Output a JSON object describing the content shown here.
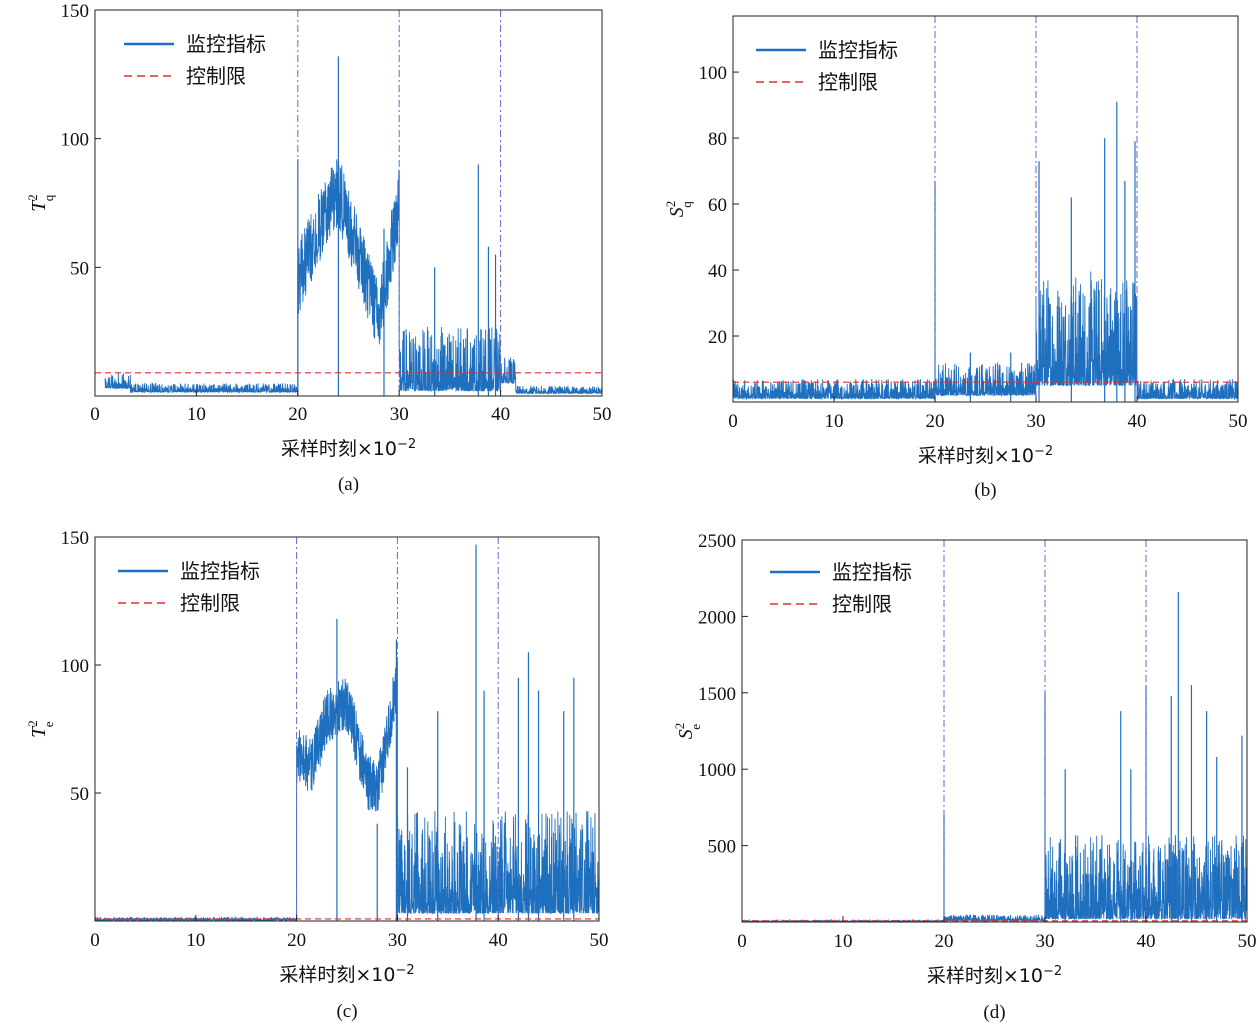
{
  "chart_data": [
    {
      "id": "a",
      "type": "line",
      "caption": "(a)",
      "ylabel": "T",
      "ylabel_sup": "2",
      "ylabel_sub": "q",
      "xlabel": "采样时刻×10",
      "xlabel_exp": "−2",
      "xlim": [
        0,
        50
      ],
      "ylim": [
        0,
        150
      ],
      "xticks": [
        0,
        10,
        20,
        30,
        40,
        50
      ],
      "xtick_labels": [
        "0",
        "10",
        "20",
        "30",
        "40",
        "50"
      ],
      "yticks": [
        50,
        100,
        150
      ],
      "ytick_labels": [
        "50",
        "100",
        "150"
      ],
      "control_limit": 9,
      "fault_lines": [
        20,
        30,
        40
      ],
      "legend": [
        "监控指标",
        "控制限"
      ],
      "segments": [
        {
          "from": 1,
          "to": 3.5,
          "base": 3,
          "spread": 6,
          "peaks": []
        },
        {
          "from": 3.5,
          "to": 20,
          "base": 1.5,
          "spread": 3.5,
          "peaks": []
        },
        {
          "from": 20,
          "to": 30,
          "curve": [
            [
              20,
              45
            ],
            [
              22,
              65
            ],
            [
              24,
              80
            ],
            [
              26,
              55
            ],
            [
              28,
              30
            ],
            [
              30,
              75
            ]
          ],
          "spread": 28,
          "peaks": [
            [
              20,
              92
            ],
            [
              24,
              132
            ],
            [
              28.5,
              65
            ]
          ]
        },
        {
          "from": 30,
          "to": 40,
          "base": 2,
          "spread": 25,
          "peaks": [
            [
              33.5,
              50
            ],
            [
              37.8,
              90
            ],
            [
              38.8,
              58
            ],
            [
              39.5,
              55
            ]
          ]
        },
        {
          "from": 40,
          "to": 41.5,
          "base": 5,
          "spread": 10,
          "peaks": []
        },
        {
          "from": 41.5,
          "to": 50,
          "base": 1,
          "spread": 3,
          "peaks": []
        }
      ],
      "colors": {
        "series": "#1f6fbf",
        "limit": "#e03030",
        "fault_line": "#6666cc"
      }
    },
    {
      "id": "b",
      "type": "line",
      "caption": "(b)",
      "ylabel": "S",
      "ylabel_sup": "2",
      "ylabel_sub": "q",
      "xlabel": "采样时刻×10",
      "xlabel_exp": "−2",
      "xlim": [
        0,
        50
      ],
      "ylim": [
        0,
        117
      ],
      "xticks": [
        0,
        10,
        20,
        30,
        40,
        50
      ],
      "xtick_labels": [
        "0",
        "10",
        "20",
        "30",
        "40",
        "50"
      ],
      "yticks": [
        20,
        40,
        60,
        80,
        100
      ],
      "ytick_labels": [
        "20",
        "40",
        "60",
        "80",
        "100"
      ],
      "control_limit": 6,
      "fault_lines": [
        20,
        30,
        40
      ],
      "legend": [
        "监控指标",
        "控制限"
      ],
      "segments": [
        {
          "from": 0,
          "to": 20,
          "base": 1,
          "spread": 6,
          "peaks": [
            [
              20,
              67
            ]
          ]
        },
        {
          "from": 20,
          "to": 30,
          "base": 2,
          "spread": 10,
          "peaks": [
            [
              23.5,
              15
            ],
            [
              27.5,
              15
            ]
          ]
        },
        {
          "from": 30,
          "to": 40,
          "base": 5,
          "spread": 35,
          "peaks": [
            [
              30.3,
              73
            ],
            [
              33.5,
              62
            ],
            [
              36.8,
              80
            ],
            [
              38,
              91
            ],
            [
              38.8,
              67
            ],
            [
              39.8,
              79
            ]
          ]
        },
        {
          "from": 40,
          "to": 50,
          "base": 1,
          "spread": 6,
          "peaks": []
        }
      ],
      "colors": {
        "series": "#1f6fbf",
        "limit": "#e03030",
        "fault_line": "#6666cc"
      }
    },
    {
      "id": "c",
      "type": "line",
      "caption": "(c)",
      "ylabel": "T",
      "ylabel_sup": "2",
      "ylabel_sub": "e",
      "xlabel": "采样时刻×10",
      "xlabel_exp": "−2",
      "xlim": [
        0,
        50
      ],
      "ylim": [
        0,
        150
      ],
      "xticks": [
        0,
        10,
        20,
        30,
        40,
        50
      ],
      "xtick_labels": [
        "0",
        "10",
        "20",
        "30",
        "40",
        "50"
      ],
      "yticks": [
        50,
        100,
        150
      ],
      "ytick_labels": [
        "50",
        "100",
        "150"
      ],
      "control_limit": 0.8,
      "fault_lines": [
        20,
        30,
        40
      ],
      "legend": [
        "监控指标",
        "控制限"
      ],
      "segments": [
        {
          "from": 0,
          "to": 20,
          "base": 0.3,
          "spread": 1.2,
          "peaks": []
        },
        {
          "from": 20,
          "to": 30,
          "curve": [
            [
              20,
              65
            ],
            [
              21.5,
              60
            ],
            [
              23,
              80
            ],
            [
              25,
              85
            ],
            [
              27,
              55
            ],
            [
              28,
              50
            ],
            [
              30,
              95
            ]
          ],
          "spread": 22,
          "peaks": [
            [
              24,
              118
            ],
            [
              28,
              38
            ],
            [
              29.9,
              110
            ]
          ]
        },
        {
          "from": 30,
          "to": 50,
          "base": 3,
          "spread": 40,
          "peaks": [
            [
              31,
              60
            ],
            [
              34,
              82
            ],
            [
              37.8,
              147
            ],
            [
              38.6,
              90
            ],
            [
              42,
              95
            ],
            [
              43,
              105
            ],
            [
              44,
              90
            ],
            [
              46.5,
              82
            ],
            [
              47.5,
              95
            ]
          ]
        }
      ],
      "colors": {
        "series": "#1f6fbf",
        "limit": "#e03030",
        "fault_line": "#6666cc"
      }
    },
    {
      "id": "d",
      "type": "line",
      "caption": "(d)",
      "ylabel": "S",
      "ylabel_sup": "2",
      "ylabel_sub": "e",
      "xlabel": "采样时刻×10",
      "xlabel_exp": "−2",
      "xlim": [
        0,
        50
      ],
      "ylim": [
        0,
        2500
      ],
      "xticks": [
        0,
        10,
        20,
        30,
        40,
        50
      ],
      "xtick_labels": [
        "0",
        "10",
        "20",
        "30",
        "40",
        "50"
      ],
      "yticks": [
        500,
        1000,
        1500,
        2000,
        2500
      ],
      "ytick_labels": [
        "500",
        "1000",
        "1500",
        "2000",
        "2500"
      ],
      "control_limit": 8,
      "fault_lines": [
        20,
        30,
        40
      ],
      "legend": [
        "监控指标",
        "控制限"
      ],
      "segments": [
        {
          "from": 0,
          "to": 20,
          "base": 3,
          "spread": 10,
          "peaks": [
            [
              20,
              700
            ]
          ]
        },
        {
          "from": 20,
          "to": 30,
          "base": 8,
          "spread": 40,
          "peaks": [
            [
              30,
              1500
            ]
          ]
        },
        {
          "from": 30,
          "to": 50,
          "base": 20,
          "spread": 550,
          "peaks": [
            [
              32,
              1000
            ],
            [
              37.5,
              1380
            ],
            [
              38.5,
              1000
            ],
            [
              40,
              1550
            ],
            [
              42.5,
              1480
            ],
            [
              43.2,
              2160
            ],
            [
              44.5,
              1550
            ],
            [
              46,
              1380
            ],
            [
              47,
              1080
            ],
            [
              49.5,
              1220
            ]
          ]
        }
      ],
      "colors": {
        "series": "#1f6fbf",
        "limit": "#e03030",
        "fault_line": "#6666cc"
      }
    }
  ]
}
